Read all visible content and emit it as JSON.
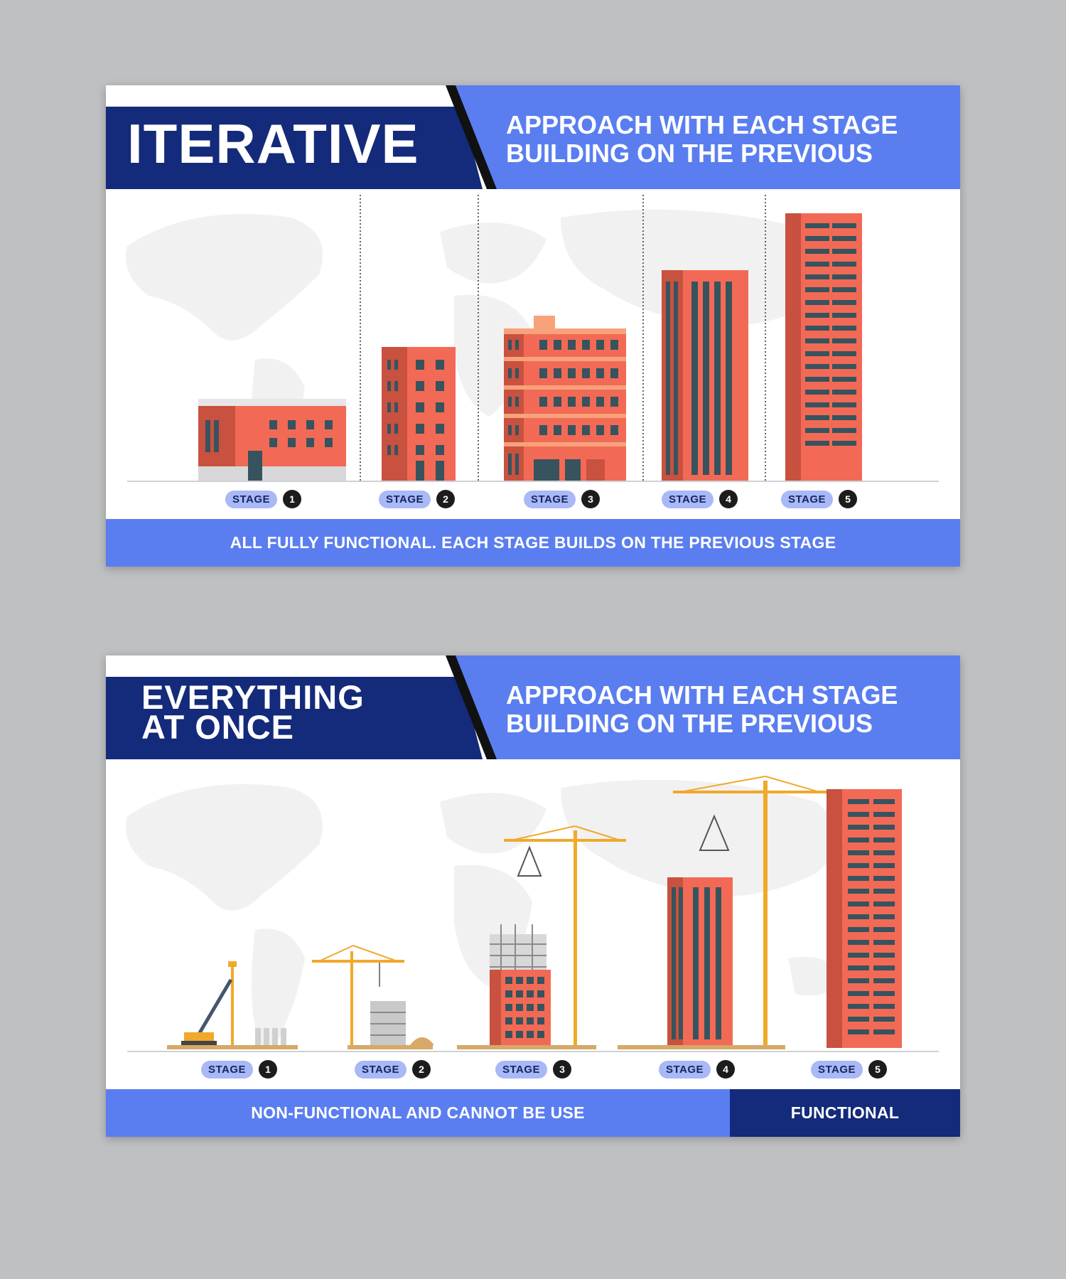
{
  "colors": {
    "dark_blue": "#142a7a",
    "accent_blue": "#5a7ef0",
    "building_red": "#f26a55",
    "window": "#37535e",
    "crane_yellow": "#f0a92b",
    "background": "#bfc0c2"
  },
  "iterative": {
    "title": "ITERATIVE",
    "subtitle_line1": "APPROACH WITH EACH STAGE",
    "subtitle_line2": "BUILDING ON THE PREVIOUS",
    "stages": [
      {
        "label": "STAGE",
        "number": "1"
      },
      {
        "label": "STAGE",
        "number": "2"
      },
      {
        "label": "STAGE",
        "number": "3"
      },
      {
        "label": "STAGE",
        "number": "4"
      },
      {
        "label": "STAGE",
        "number": "5"
      }
    ],
    "footer": "ALL FULLY FUNCTIONAL. EACH STAGE BUILDS ON THE PREVIOUS STAGE"
  },
  "everything": {
    "title_line1": "EVERYTHING",
    "title_line2": "AT ONCE",
    "subtitle_line1": "APPROACH WITH EACH STAGE",
    "subtitle_line2": "BUILDING ON THE PREVIOUS",
    "stages": [
      {
        "label": "STAGE",
        "number": "1"
      },
      {
        "label": "STAGE",
        "number": "2"
      },
      {
        "label": "STAGE",
        "number": "3"
      },
      {
        "label": "STAGE",
        "number": "4"
      },
      {
        "label": "STAGE",
        "number": "5"
      }
    ],
    "footer_left": "NON-FUNCTIONAL AND CANNOT BE USE",
    "footer_right": "FUNCTIONAL"
  }
}
